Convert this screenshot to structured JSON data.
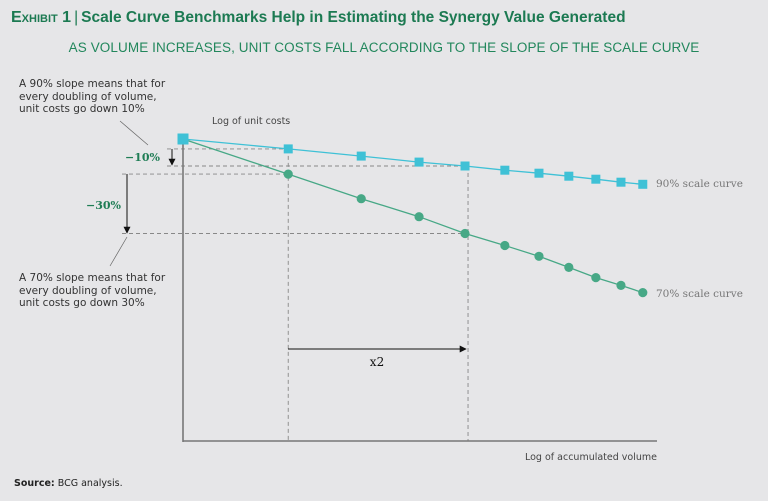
{
  "header": {
    "exhibit": "Exhibit 1",
    "title": "Scale Curve Benchmarks Help in Estimating the Synergy Value Generated",
    "subtitle": "AS VOLUME INCREASES, UNIT COSTS FALL ACCORDING TO THE SLOPE OF THE SCALE CURVE"
  },
  "notes": {
    "slope90": [
      "A 90% slope means that for",
      "every doubling of volume,",
      "unit costs go down 10%"
    ],
    "slope70": [
      "A 70% slope means that for",
      "every doubling of volume,",
      "unit costs go down 30%"
    ]
  },
  "footer": {
    "source_label": "Source:",
    "source_text": "BCG analysis."
  },
  "colors": {
    "curve90": "#3fc1d6",
    "curve70": "#47a886",
    "title": "#1c7a52"
  },
  "chart_data": {
    "type": "line",
    "title": "Scale Curve Benchmarks Help in Estimating the Synergy Value Generated",
    "xlabel": "Log of accumulated volume",
    "ylabel": "Log of unit costs",
    "x_scale": "log (relative, unlabeled)",
    "y_scale": "log (relative, unlabeled)",
    "grid": false,
    "xlim": [
      0,
      100
    ],
    "ylim": [
      0,
      100
    ],
    "series": [
      {
        "name": "90% scale curve",
        "marker": "square",
        "x": [
          0,
          22.2,
          37.6,
          49.8,
          59.5,
          67.9,
          75.1,
          81.4,
          87.1,
          92.4,
          97.0
        ],
        "y": [
          100,
          96.7,
          94.3,
          92.3,
          91.0,
          89.6,
          88.6,
          87.6,
          86.6,
          85.6,
          84.9
        ]
      },
      {
        "name": "70% scale curve",
        "marker": "circle",
        "x": [
          0,
          22.2,
          37.6,
          49.8,
          59.5,
          67.9,
          75.1,
          81.4,
          87.1,
          92.4,
          97.0
        ],
        "y": [
          100,
          88.3,
          80.1,
          74.1,
          68.5,
          64.5,
          60.9,
          57.2,
          53.8,
          51.2,
          48.8
        ]
      }
    ],
    "annotations": [
      {
        "text": "−10%",
        "type": "drop-arrow",
        "series": "90% scale curve"
      },
      {
        "text": "−30%",
        "type": "drop-arrow",
        "series": "70% scale curve"
      },
      {
        "text": "x2",
        "type": "doubling-arrow",
        "from_x": 22.2,
        "to_x": 60.3
      }
    ],
    "legend": "inline-right"
  }
}
